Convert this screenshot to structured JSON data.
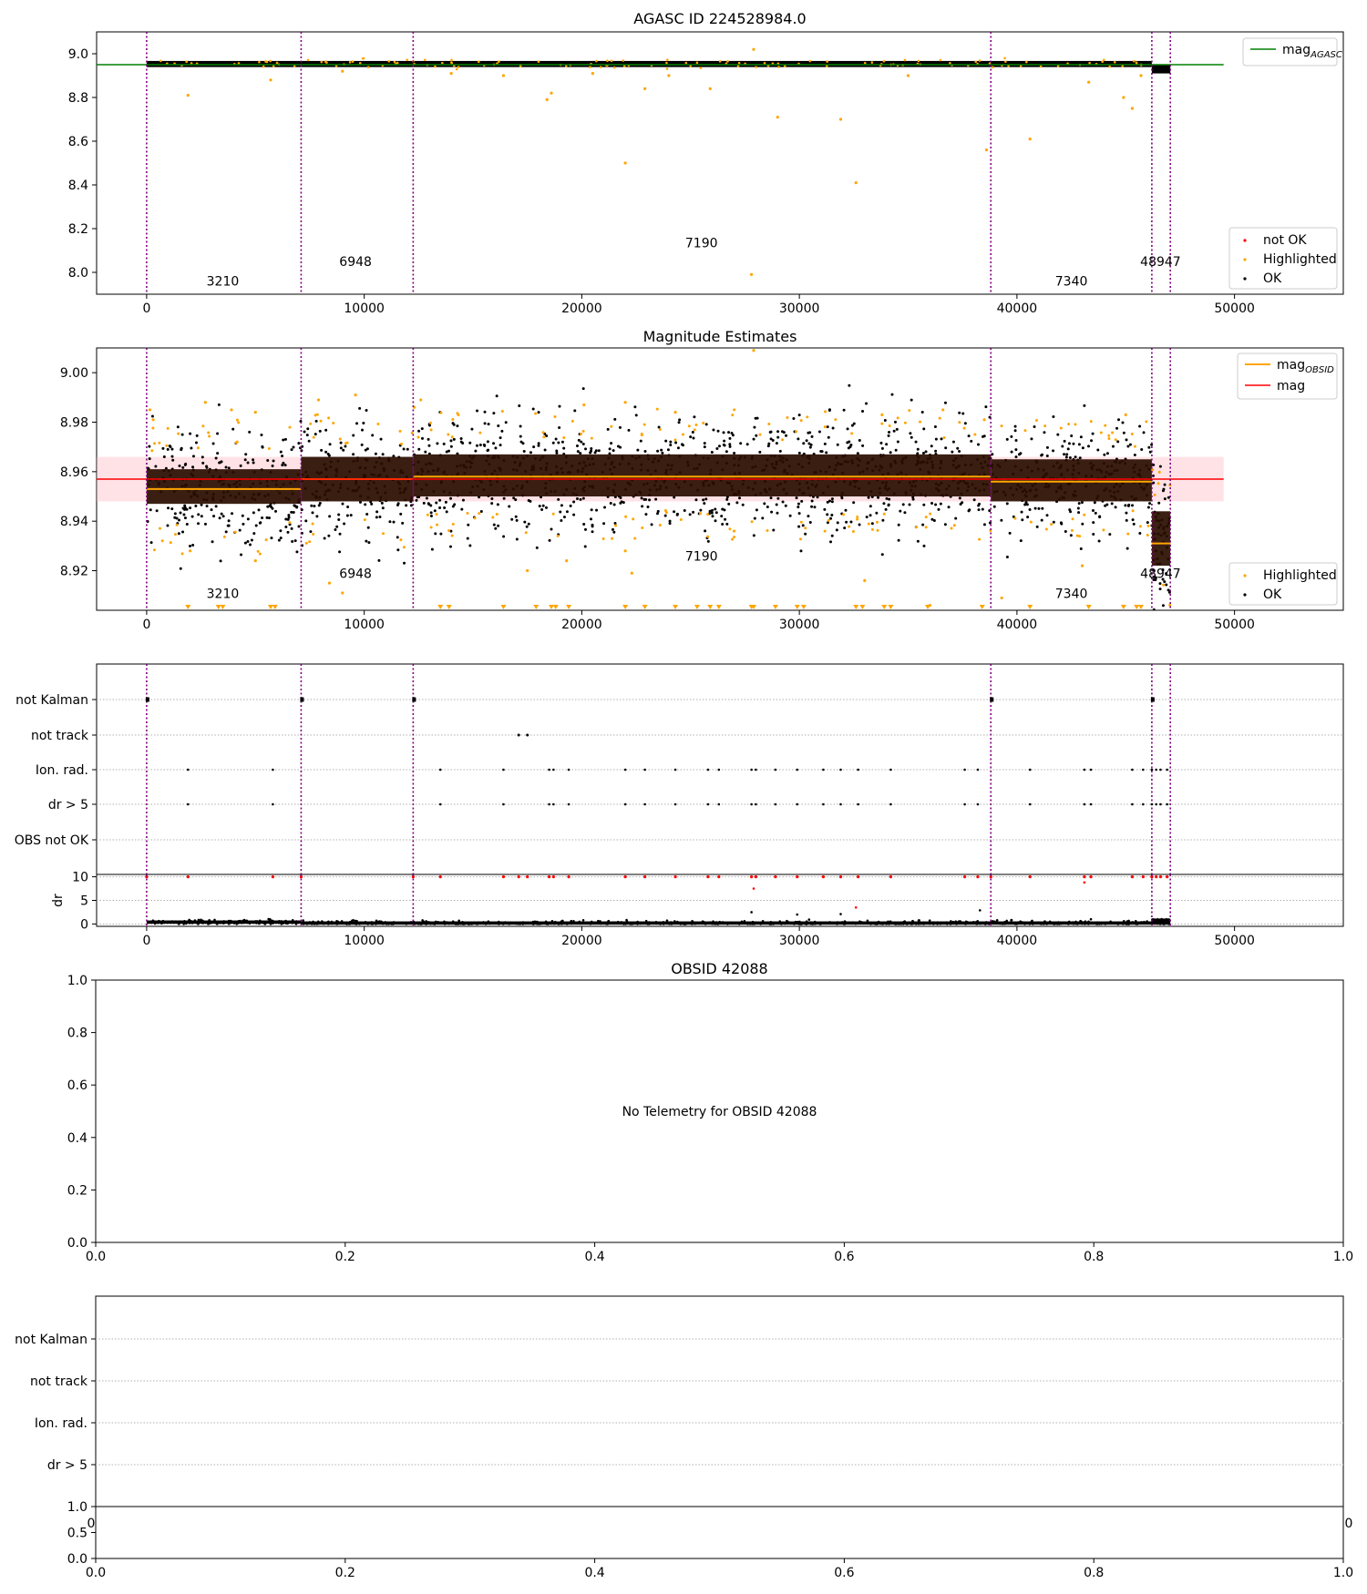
{
  "figure": {
    "background": "#ffffff"
  },
  "colors": {
    "ok": "#000000",
    "highlighted": "#ffa500",
    "not_ok": "#ff0000",
    "mag_agasc": "#008000",
    "mag": "#ff0000",
    "mag_obsid": "#ffa500",
    "obs_boundary": "#800080",
    "band": "#ffb6c1",
    "obsid_band": "#2a0d00",
    "grid": "#b0b0b0"
  },
  "chart_data": [
    {
      "id": "p1",
      "type": "scatter",
      "title": "AGASC ID 224528984.0",
      "xlim": [
        -2300,
        55000
      ],
      "ylim": [
        7.9,
        9.1
      ],
      "xticks": [
        0,
        10000,
        20000,
        30000,
        40000,
        50000
      ],
      "xtick_labels": [
        "0",
        "10000",
        "20000",
        "30000",
        "40000",
        "50000"
      ],
      "yticks": [
        8.0,
        8.2,
        8.4,
        8.6,
        8.8,
        9.0
      ],
      "ytick_labels": [
        "8.0",
        "8.2",
        "8.4",
        "8.6",
        "8.8",
        "9.0"
      ],
      "mag_agasc": {
        "value": 8.95,
        "x_range": [
          -2300,
          49500
        ]
      },
      "obs_boundaries": [
        0,
        7100,
        12250,
        38800,
        46200,
        47050
      ],
      "obs_labels": [
        {
          "text": "3210",
          "x": 3500,
          "y": 7.94
        },
        {
          "text": "6948",
          "x": 9600,
          "y": 8.03
        },
        {
          "text": "7190",
          "x": 25500,
          "y": 8.115
        },
        {
          "text": "7340",
          "x": 42500,
          "y": 7.94
        },
        {
          "text": "48947",
          "x": 46600,
          "y": 8.03
        }
      ],
      "ok_band": {
        "center": 8.953,
        "half": 0.014,
        "x_range": [
          0,
          47000
        ],
        "tail": {
          "x_range": [
            46200,
            47050
          ],
          "center": 8.93,
          "half": 0.02
        }
      },
      "highlighted_points": [
        [
          1900,
          8.81
        ],
        [
          5700,
          8.88
        ],
        [
          18400,
          8.79
        ],
        [
          18600,
          8.82
        ],
        [
          22000,
          8.5
        ],
        [
          22900,
          8.84
        ],
        [
          25900,
          8.84
        ],
        [
          27800,
          7.99
        ],
        [
          27900,
          9.02
        ],
        [
          29000,
          8.71
        ],
        [
          31900,
          8.7
        ],
        [
          32600,
          8.41
        ],
        [
          38600,
          8.56
        ],
        [
          40600,
          8.61
        ],
        [
          43300,
          8.87
        ],
        [
          44900,
          8.8
        ],
        [
          45300,
          8.75
        ],
        [
          45700,
          8.9
        ],
        [
          16400,
          8.9
        ],
        [
          20500,
          8.91
        ],
        [
          24000,
          8.9
        ],
        [
          35000,
          8.9
        ],
        [
          14000,
          8.91
        ],
        [
          9000,
          8.92
        ]
      ],
      "legend": {
        "position": "upper-right",
        "entries": [
          "mag_AGASC"
        ]
      },
      "legend2": {
        "position": "lower-right",
        "entries": [
          "not OK",
          "Highlighted",
          "OK"
        ]
      }
    },
    {
      "id": "p2",
      "type": "scatter",
      "title": "Magnitude Estimates",
      "xlim": [
        -2300,
        55000
      ],
      "ylim": [
        8.904,
        9.01
      ],
      "xticks": [
        0,
        10000,
        20000,
        30000,
        40000,
        50000
      ],
      "xtick_labels": [
        "0",
        "10000",
        "20000",
        "30000",
        "40000",
        "50000"
      ],
      "yticks": [
        8.92,
        8.94,
        8.96,
        8.98,
        9.0
      ],
      "ytick_labels": [
        "8.92",
        "8.94",
        "8.96",
        "8.98",
        "9.00"
      ],
      "mag": {
        "value": 8.957,
        "band": [
          8.948,
          8.966
        ],
        "x_range": [
          -2300,
          49500
        ]
      },
      "obs_boundaries": [
        0,
        7100,
        12250,
        38800,
        46200,
        47050
      ],
      "segments": [
        {
          "x_range": [
            0,
            7100
          ],
          "mag_obsid": 8.953,
          "band": [
            8.947,
            8.961
          ],
          "spread": [
            8.93,
            8.978
          ]
        },
        {
          "x_range": [
            7100,
            12250
          ],
          "mag_obsid": 8.957,
          "band": [
            8.948,
            8.966
          ],
          "spread": [
            8.932,
            8.98
          ]
        },
        {
          "x_range": [
            12250,
            38800
          ],
          "mag_obsid": 8.958,
          "band": [
            8.95,
            8.967
          ],
          "spread": [
            8.936,
            8.982
          ]
        },
        {
          "x_range": [
            38800,
            46200
          ],
          "mag_obsid": 8.956,
          "band": [
            8.948,
            8.965
          ],
          "spread": [
            8.936,
            8.978
          ]
        },
        {
          "x_range": [
            46200,
            47050
          ],
          "mag_obsid": 8.931,
          "band": [
            8.922,
            8.944
          ],
          "spread": [
            8.904,
            8.96
          ]
        }
      ],
      "obs_labels": [
        {
          "text": "3210",
          "x": 3500,
          "y": 8.909
        },
        {
          "text": "6948",
          "x": 9600,
          "y": 8.917
        },
        {
          "text": "7190",
          "x": 25500,
          "y": 8.924
        },
        {
          "text": "7340",
          "x": 42500,
          "y": 8.909
        },
        {
          "text": "48947",
          "x": 46600,
          "y": 8.917
        }
      ],
      "highlighted_points": [
        [
          150,
          8.985
        ],
        [
          300,
          8.981
        ],
        [
          2700,
          8.988
        ],
        [
          3900,
          8.985
        ],
        [
          5000,
          8.984
        ],
        [
          7900,
          8.989
        ],
        [
          9600,
          8.991
        ],
        [
          12300,
          8.986
        ],
        [
          20100,
          8.987
        ],
        [
          22000,
          8.988
        ],
        [
          24300,
          8.984
        ],
        [
          27900,
          9.009
        ],
        [
          33800,
          8.983
        ],
        [
          36600,
          8.985
        ],
        [
          38500,
          8.981
        ],
        [
          45000,
          8.983
        ],
        [
          2000,
          8.928
        ],
        [
          5000,
          8.924
        ],
        [
          8400,
          8.915
        ],
        [
          9000,
          8.911
        ],
        [
          17500,
          8.92
        ],
        [
          19300,
          8.924
        ],
        [
          22000,
          8.928
        ],
        [
          22300,
          8.919
        ],
        [
          27000,
          8.936
        ],
        [
          33000,
          8.916
        ],
        [
          36000,
          8.906
        ],
        [
          39300,
          8.909
        ],
        [
          43000,
          8.922
        ],
        [
          12600,
          8.989
        ]
      ],
      "clipped_low_x": [
        1900,
        3300,
        3500,
        5700,
        5900,
        13500,
        13900,
        16400,
        17900,
        18600,
        18800,
        19400,
        22000,
        22900,
        24300,
        25300,
        25900,
        26300,
        27800,
        27900,
        28900,
        29900,
        30200,
        32600,
        32900,
        33900,
        34200,
        35900,
        38400,
        40600,
        43300,
        44900,
        45500,
        45700
      ],
      "legend": {
        "position": "upper-right",
        "entries": [
          "mag_OBSID",
          "mag"
        ]
      },
      "legend2": {
        "position": "lower-right",
        "entries": [
          "Highlighted",
          "OK"
        ]
      }
    },
    {
      "id": "p3",
      "type": "flags",
      "xlim": [
        -2300,
        55000
      ],
      "row_labels": [
        "not Kalman",
        "not track",
        "Ion. rad.",
        "dr > 5",
        "OBS not OK"
      ],
      "obs_boundaries": [
        0,
        7100,
        12250,
        38800,
        46200,
        47050
      ],
      "not_kalman_x": [
        0,
        7100,
        12250,
        38800,
        46200
      ],
      "not_track_x": [
        17100,
        17500
      ],
      "ion_rad_x": [
        1900,
        5800,
        13500,
        16400,
        18500,
        18700,
        19400,
        22000,
        22900,
        24300,
        25800,
        26300,
        27800,
        28000,
        28900,
        29900,
        31100,
        31900,
        32700,
        34200,
        37600,
        38200,
        40600,
        43100,
        43400,
        45300,
        45800,
        46200,
        46400,
        46600,
        46900
      ],
      "dr_gt5_x": [
        1900,
        5800,
        13500,
        16400,
        18500,
        18700,
        19400,
        22000,
        22900,
        24300,
        25800,
        26300,
        27800,
        28000,
        28900,
        29900,
        31100,
        31900,
        32700,
        34200,
        37600,
        38200,
        40600,
        43100,
        43400,
        45300,
        45800,
        46200,
        46400,
        46600,
        46900
      ]
    },
    {
      "id": "p4",
      "type": "scatter",
      "ylabel": "dr",
      "xlim": [
        -2300,
        55000
      ],
      "ylim": [
        -0.5,
        10.5
      ],
      "xticks": [
        0,
        10000,
        20000,
        30000,
        40000,
        50000
      ],
      "xtick_labels": [
        "0",
        "10000",
        "20000",
        "30000",
        "40000",
        "50000"
      ],
      "yticks": [
        0,
        5,
        10
      ],
      "ytick_labels": [
        "0",
        "5",
        "10"
      ],
      "obs_boundaries": [
        0,
        7100,
        12250,
        38800,
        46200,
        47050
      ],
      "baseline": [
        {
          "x_range": [
            0,
            7100
          ],
          "y": 0.4
        },
        {
          "x_range": [
            7100,
            47050
          ],
          "y": 0.2
        },
        {
          "x_range": [
            46200,
            47050
          ],
          "y": 0.8
        }
      ],
      "not_ok_high_x": [
        0,
        1900,
        5800,
        7100,
        12250,
        13500,
        16400,
        17100,
        17500,
        18500,
        18700,
        19400,
        22000,
        22900,
        24300,
        25800,
        26300,
        27800,
        28000,
        28900,
        29900,
        31100,
        31900,
        32700,
        34200,
        37600,
        38200,
        38800,
        40600,
        43100,
        43400,
        45300,
        45800,
        46200,
        46400,
        46600,
        46900
      ],
      "not_ok_other": [
        [
          27900,
          7.5
        ],
        [
          32600,
          3.5
        ],
        [
          43100,
          8.8
        ]
      ],
      "ok_other": [
        [
          27800,
          2.5
        ],
        [
          29900,
          2.0
        ],
        [
          31900,
          2.1
        ],
        [
          38300,
          2.9
        ],
        [
          43400,
          1.0
        ]
      ]
    },
    {
      "id": "p5",
      "type": "empty",
      "title": "OBSID 42088",
      "xlim": [
        0,
        1
      ],
      "ylim": [
        0,
        1
      ],
      "xticks": [
        0,
        0.2,
        0.4,
        0.6,
        0.8,
        1.0
      ],
      "xtick_labels": [
        "0.0",
        "0.2",
        "0.4",
        "0.6",
        "0.8",
        "1.0"
      ],
      "yticks": [
        0,
        0.2,
        0.4,
        0.6,
        0.8,
        1.0
      ],
      "ytick_labels": [
        "0.0",
        "0.2",
        "0.4",
        "0.6",
        "0.8",
        "1.0"
      ],
      "annotation": "No Telemetry for OBSID 42088"
    },
    {
      "id": "p6",
      "type": "flags",
      "xlim": [
        0,
        1
      ],
      "row_labels": [
        "not Kalman",
        "not track",
        "Ion. rad.",
        "dr > 5"
      ],
      "clipped_xtick_labels": [
        "0",
        "0"
      ]
    },
    {
      "id": "p7",
      "type": "empty",
      "xlim": [
        0,
        1
      ],
      "ylim": [
        0,
        1
      ],
      "xticks": [
        0,
        0.2,
        0.4,
        0.6,
        0.8,
        1.0
      ],
      "xtick_labels": [
        "0.0",
        "0.2",
        "0.4",
        "0.6",
        "0.8",
        "1.0"
      ],
      "yticks": [
        0,
        0.5,
        1.0
      ],
      "ytick_labels": [
        "0.0",
        "0.5",
        "1.0"
      ]
    }
  ],
  "legend_labels": {
    "mag_agasc_base": "mag",
    "mag_agasc_sub": "AGASC",
    "mag_obsid_base": "mag",
    "mag_obsid_sub": "OBSID",
    "mag": "mag",
    "not_ok": "not OK",
    "highlighted": "Highlighted",
    "ok": "OK"
  }
}
